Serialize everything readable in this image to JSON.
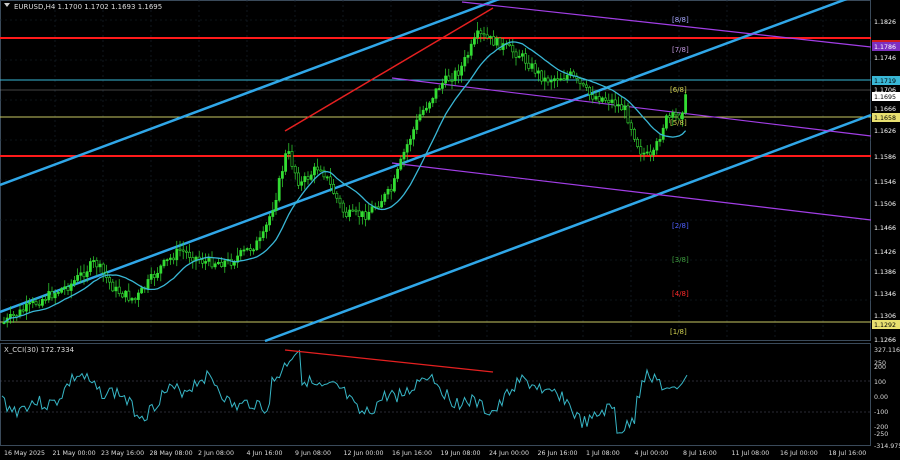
{
  "header": {
    "symbol_line": "EURUSD,H4  1.1700 1.1702 1.1693 1.1695"
  },
  "indicator": {
    "label": "X_CCI(30) 172.7334"
  },
  "colors": {
    "background": "#000000",
    "grid": "#1f2f3f",
    "candle": "#33dd33",
    "ma": "#39b7d6",
    "cci": "#37b6c6",
    "channel": "#30a7e8",
    "resistance": "#ff1a1a",
    "murray": "#a23ee6",
    "level_yellow": "#c8c864"
  },
  "price_axis": [
    {
      "value": "1.1826",
      "color": "#ffffff",
      "bg": "none"
    },
    {
      "value": "1.1799",
      "color": "#ffffff",
      "bg": "#d11a1a"
    },
    {
      "value": "1.1786",
      "color": "#ffffff",
      "bg": "#7d2fc0"
    },
    {
      "value": "1.1746",
      "color": "#ffffff",
      "bg": "none"
    },
    {
      "value": "1.1719",
      "color": "#000000",
      "bg": "#39b7d6"
    },
    {
      "value": "1.1706",
      "color": "#ffffff",
      "bg": "none"
    },
    {
      "value": "1.1695",
      "color": "#000000",
      "bg": "#ffffff"
    },
    {
      "value": "1.1666",
      "color": "#ffffff",
      "bg": "none"
    },
    {
      "value": "1.1658",
      "color": "#000000",
      "bg": "#e8e070"
    },
    {
      "value": "1.1626",
      "color": "#ffffff",
      "bg": "none"
    },
    {
      "value": "1.1586",
      "color": "#ffffff",
      "bg": "none"
    },
    {
      "value": "1.1546",
      "color": "#ffffff",
      "bg": "none"
    },
    {
      "value": "1.1506",
      "color": "#ffffff",
      "bg": "none"
    },
    {
      "value": "1.1466",
      "color": "#ffffff",
      "bg": "none"
    },
    {
      "value": "1.1426",
      "color": "#ffffff",
      "bg": "none"
    },
    {
      "value": "1.1386",
      "color": "#ffffff",
      "bg": "none"
    },
    {
      "value": "1.1346",
      "color": "#ffffff",
      "bg": "none"
    },
    {
      "value": "1.1306",
      "color": "#ffffff",
      "bg": "none"
    },
    {
      "value": "1.1292",
      "color": "#000000",
      "bg": "#e8e070"
    },
    {
      "value": "1.1266",
      "color": "#ffffff",
      "bg": "none"
    }
  ],
  "cci_axis": [
    "327.116",
    "250",
    "200",
    "100",
    "0.00",
    "-100",
    "-200",
    "-250",
    "-314.975"
  ],
  "time_axis": [
    "16 May 2025",
    "21 May 00:00",
    "23 May 16:00",
    "28 May 08:00",
    "2 Jun 08:00",
    "4 Jun 16:00",
    "9 Jun 08:00",
    "12 Jun 00:00",
    "16 Jun 16:00",
    "19 Jun 08:00",
    "24 Jun 00:00",
    "26 Jun 16:00",
    "1 Jul 08:00",
    "4 Jul 00:00",
    "8 Jul 16:00",
    "11 Jul 08:00",
    "16 Jul 00:00",
    "18 Jul 16:00"
  ],
  "level_tags": [
    {
      "text": "[6/8]",
      "color": "#cfcf50"
    },
    {
      "text": "[4/8]",
      "color": "#ff2a2a"
    },
    {
      "text": "[1/8]",
      "color": "#cfcf50"
    }
  ],
  "cci_levels": {
    "upper": 100,
    "lower": -100
  }
}
